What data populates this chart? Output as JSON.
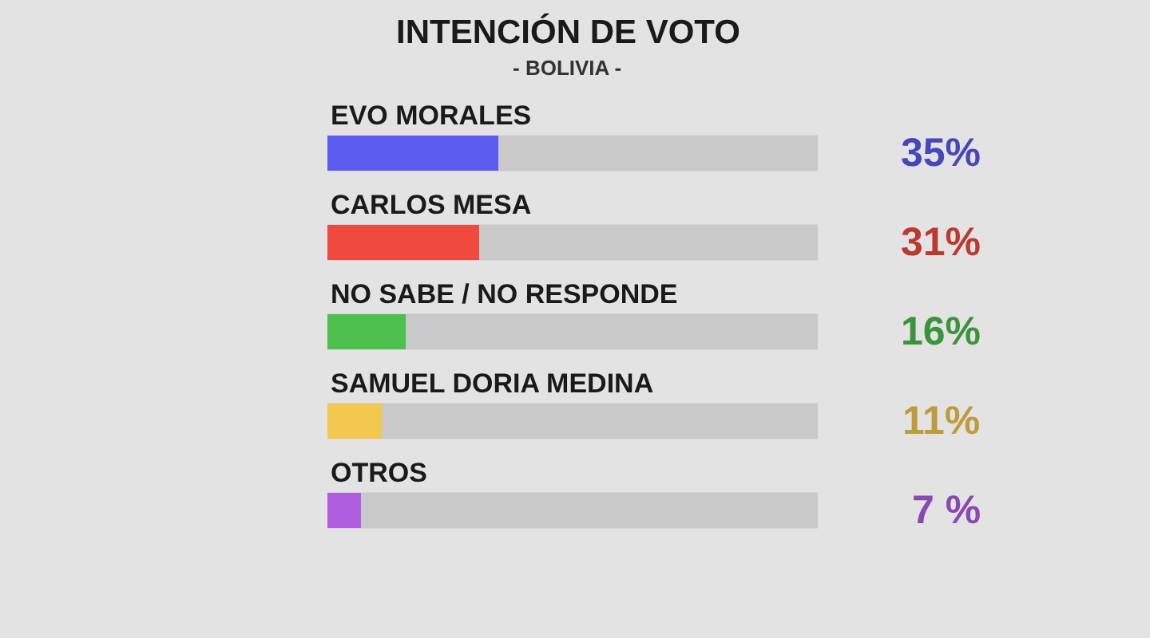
{
  "chart_data": {
    "type": "bar",
    "orientation": "horizontal",
    "title": "INTENCIÓN DE VOTO",
    "subtitle": "- BOLIVIA -",
    "categories": [
      "EVO MORALES",
      "CARLOS MESA",
      "NO SABE / NO RESPONDE",
      "SAMUEL DORIA MEDINA",
      "OTROS"
    ],
    "values": [
      35,
      31,
      16,
      11,
      7
    ],
    "colors": [
      "#5a5cf0",
      "#f04a40",
      "#4cbf4c",
      "#f2c84e",
      "#b05ee0"
    ],
    "value_labels": [
      "35%",
      "31%",
      "16%",
      "11%",
      "7 %"
    ],
    "xlim": [
      0,
      100
    ],
    "tick_labels": "y"
  }
}
